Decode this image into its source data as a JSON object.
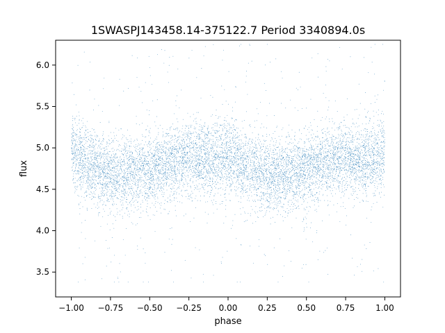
{
  "chart_data": {
    "type": "scatter",
    "title": "1SWASPJ143458.14-375122.7 Period 3340894.0s",
    "xlabel": "phase",
    "ylabel": "flux",
    "xlim": [
      -1.1,
      1.1
    ],
    "ylim": [
      3.2,
      6.3
    ],
    "x_ticks": [
      -1.0,
      -0.75,
      -0.5,
      -0.25,
      0.0,
      0.25,
      0.5,
      0.75,
      1.0
    ],
    "x_tick_labels": [
      "−1.00",
      "−0.75",
      "−0.50",
      "−0.25",
      "0.00",
      "0.25",
      "0.50",
      "0.75",
      "1.00"
    ],
    "y_ticks": [
      3.5,
      4.0,
      4.5,
      5.0,
      5.5,
      6.0
    ],
    "y_tick_labels": [
      "3.5",
      "4.0",
      "4.5",
      "5.0",
      "5.5",
      "6.0"
    ],
    "grid": false,
    "legend": "none",
    "point_color": "#1f77b4",
    "series": [
      {
        "phase_profile": {
          "phase": [
            -1.0,
            -0.9,
            -0.8,
            -0.75,
            -0.7,
            -0.6,
            -0.5,
            -0.4,
            -0.3,
            -0.25,
            -0.2,
            -0.1,
            0.0,
            0.05,
            0.1,
            0.2,
            0.25,
            0.3,
            0.4,
            0.5,
            0.6,
            0.7,
            0.75,
            0.8,
            0.9,
            1.0
          ],
          "median_flux": [
            4.95,
            4.8,
            4.72,
            4.68,
            4.66,
            4.68,
            4.72,
            4.8,
            4.86,
            4.88,
            4.88,
            4.85,
            4.92,
            4.9,
            4.78,
            4.7,
            4.67,
            4.66,
            4.68,
            4.74,
            4.82,
            4.88,
            4.88,
            4.86,
            4.84,
            4.92
          ],
          "spread": 0.22,
          "min_flux": 3.38,
          "max_flux": 6.25
        },
        "n_points": 9000
      }
    ]
  }
}
